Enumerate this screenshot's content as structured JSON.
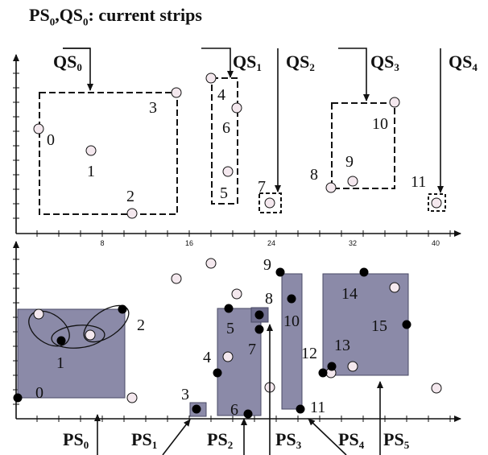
{
  "title": {
    "prefix": "PS",
    "sub1": "0",
    "mid": ",QS",
    "sub2": "0",
    "suffix": ": current strips"
  },
  "top_panel": {
    "x_tick_labels": [
      "8",
      "16",
      "24",
      "32",
      "40"
    ],
    "strip_labels": [
      {
        "base": "QS",
        "sub": "0"
      },
      {
        "base": "QS",
        "sub": "1"
      },
      {
        "base": "QS",
        "sub": "2"
      },
      {
        "base": "QS",
        "sub": "3"
      },
      {
        "base": "QS",
        "sub": "4"
      }
    ],
    "point_labels": [
      "0",
      "1",
      "2",
      "3",
      "4",
      "5",
      "6",
      "7",
      "8",
      "9",
      "10",
      "11"
    ]
  },
  "bottom_panel": {
    "strip_labels": [
      {
        "base": "PS",
        "sub": "0"
      },
      {
        "base": "PS",
        "sub": "1"
      },
      {
        "base": "PS",
        "sub": "2"
      },
      {
        "base": "PS",
        "sub": "3"
      },
      {
        "base": "PS",
        "sub": "4"
      },
      {
        "base": "PS",
        "sub": "5"
      }
    ],
    "point_labels": [
      "0",
      "1",
      "2",
      "3",
      "4",
      "5",
      "6",
      "7",
      "8",
      "9",
      "10",
      "11",
      "12",
      "13",
      "14",
      "15"
    ]
  },
  "colors": {
    "box_fill": "#8b8aa8",
    "box_stroke": "#4a4a66",
    "open_point": "#f4e8ee",
    "filled_point": "#000000",
    "ink": "#111111"
  }
}
